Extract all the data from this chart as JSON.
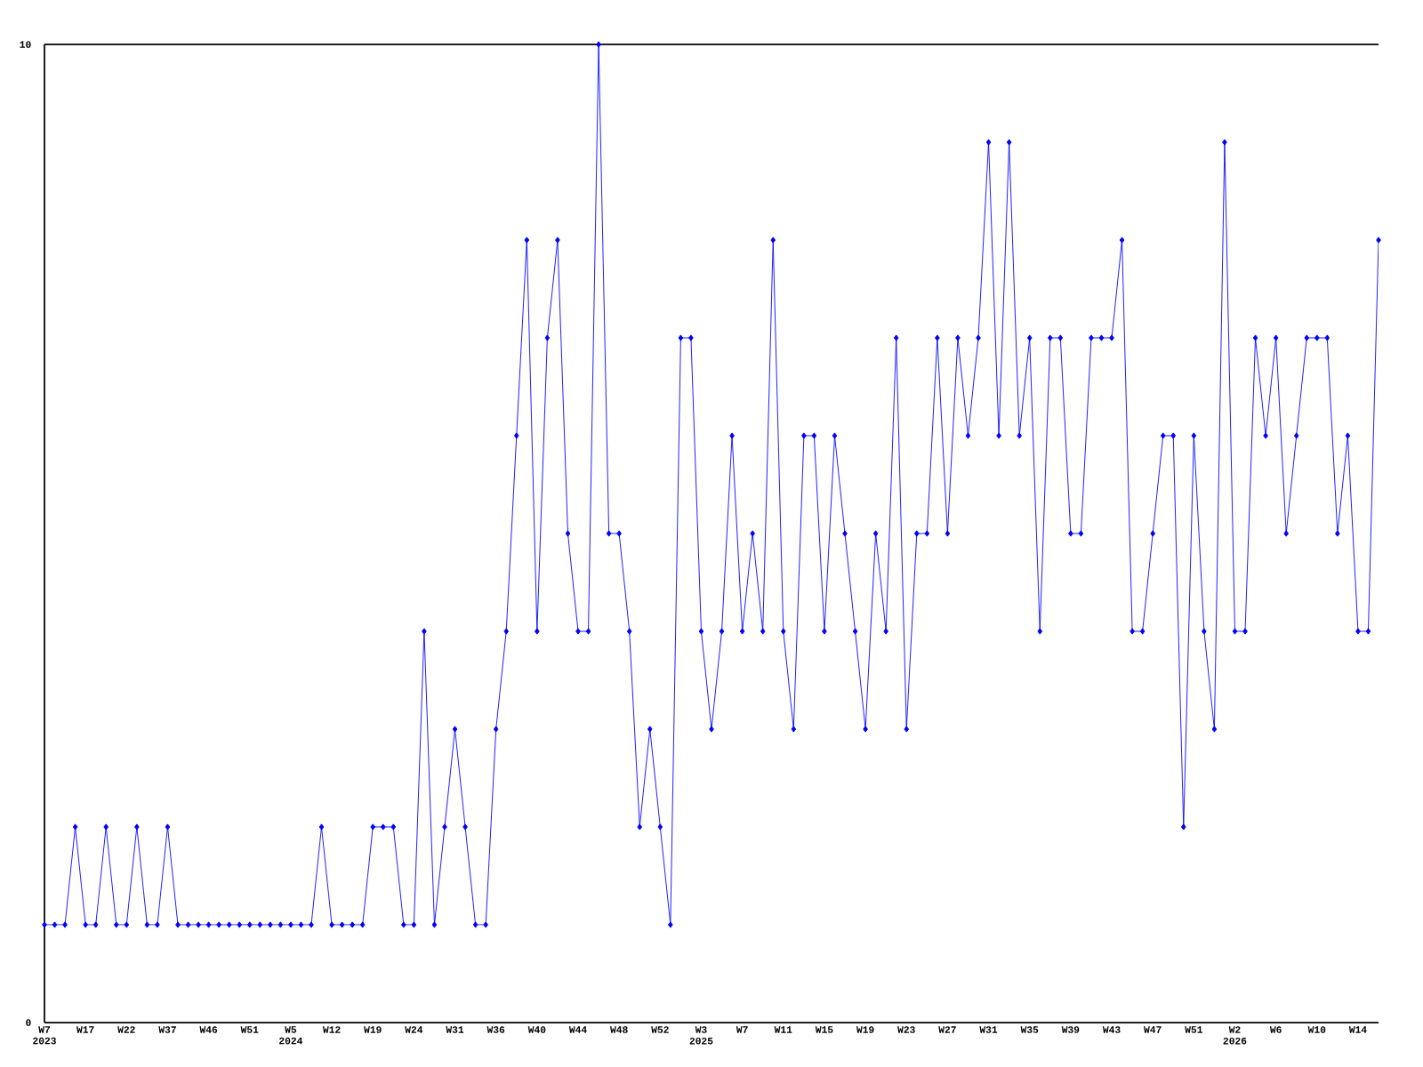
{
  "chart_data": {
    "type": "line",
    "categories": [
      "W7 2023",
      null,
      null,
      null,
      "W17",
      null,
      null,
      null,
      "W22",
      null,
      null,
      null,
      "W37",
      null,
      null,
      null,
      "W46",
      null,
      null,
      null,
      "W51",
      null,
      null,
      null,
      "W5 2024",
      null,
      null,
      null,
      "W12",
      null,
      null,
      null,
      "W19",
      null,
      null,
      null,
      "W24",
      null,
      null,
      null,
      "W31",
      null,
      null,
      null,
      "W36",
      null,
      null,
      null,
      "W40",
      null,
      null,
      null,
      "W44",
      null,
      null,
      null,
      "W48",
      null,
      null,
      null,
      "W52",
      null,
      null,
      null,
      "W3 2025",
      null,
      null,
      null,
      "W7",
      null,
      null,
      null,
      "W11",
      null,
      null,
      null,
      "W15",
      null,
      null,
      null,
      "W19",
      null,
      null,
      null,
      "W23",
      null,
      null,
      null,
      "W27",
      null,
      null,
      null,
      "W31",
      null,
      null,
      null,
      "W35",
      null,
      null,
      null,
      "W39",
      null,
      null,
      null,
      "W43",
      null,
      null,
      null,
      "W47",
      null,
      null,
      null,
      "W51",
      null,
      null,
      null,
      "W2 2026",
      null,
      null,
      null,
      "W6",
      null,
      null,
      null,
      "W10",
      null,
      null,
      null,
      "W14",
      null,
      null
    ],
    "values": [
      1,
      1,
      1,
      2,
      1,
      1,
      2,
      1,
      1,
      2,
      1,
      1,
      2,
      1,
      1,
      1,
      1,
      1,
      1,
      1,
      1,
      1,
      1,
      1,
      1,
      1,
      1,
      2,
      1,
      1,
      1,
      1,
      2,
      2,
      2,
      1,
      1,
      4,
      1,
      2,
      3,
      2,
      1,
      1,
      3,
      4,
      6,
      8,
      4,
      7,
      8,
      5,
      4,
      4,
      10,
      5,
      5,
      4,
      2,
      3,
      2,
      1,
      7,
      7,
      4,
      3,
      4,
      6,
      4,
      5,
      4,
      8,
      4,
      3,
      6,
      6,
      4,
      6,
      5,
      4,
      3,
      5,
      4,
      7,
      3,
      5,
      5,
      7,
      5,
      7,
      6,
      7,
      9,
      6,
      9,
      6,
      7,
      4,
      7,
      7,
      5,
      5,
      7,
      7,
      7,
      8,
      4,
      4,
      5,
      6,
      6,
      2,
      6,
      4,
      3,
      9,
      4,
      4,
      7,
      6,
      7,
      5,
      6,
      7,
      7,
      7,
      5,
      6,
      4,
      4,
      8
    ],
    "color": "#0000ff",
    "ylim": [
      0,
      10
    ],
    "yticks": [
      0,
      10
    ],
    "marker": "diamond",
    "line_style": "solid"
  }
}
